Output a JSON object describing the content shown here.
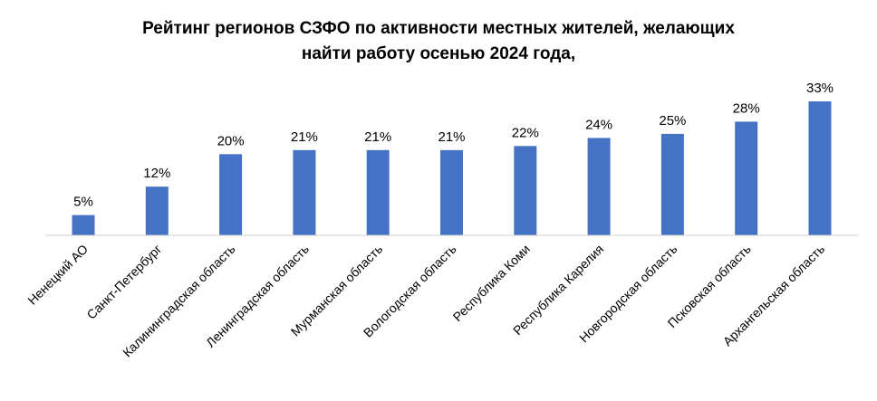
{
  "chart_data": {
    "type": "bar",
    "title_lines": [
      "Рейтинг регионов СЗФО по активности местных жителей, желающих",
      "найти работу осенью 2024 года,"
    ],
    "categories": [
      "Ненецкий АО",
      "Санкт-Петербург",
      "Калининградская область",
      "Ленинградская область",
      "Мурманская область",
      "Вологодская область",
      "Республика Коми",
      "Республика Карелия",
      "Новгородская область",
      "Псковская область",
      "Архангельская область"
    ],
    "values": [
      5,
      12,
      20,
      21,
      21,
      21,
      22,
      24,
      25,
      28,
      33
    ],
    "value_labels": [
      "5%",
      "12%",
      "20%",
      "21%",
      "21%",
      "21%",
      "22%",
      "24%",
      "25%",
      "28%",
      "33%"
    ],
    "unit": "%",
    "ylim": [
      0,
      33
    ],
    "grid": false,
    "bar_color": "#4472C4"
  }
}
